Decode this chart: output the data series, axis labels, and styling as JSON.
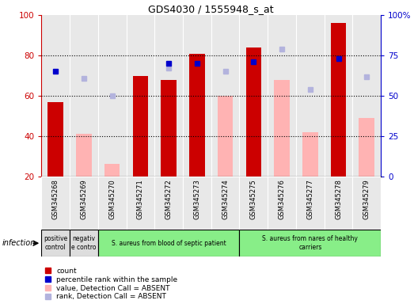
{
  "title": "GDS4030 / 1555948_s_at",
  "samples": [
    "GSM345268",
    "GSM345269",
    "GSM345270",
    "GSM345271",
    "GSM345272",
    "GSM345273",
    "GSM345274",
    "GSM345275",
    "GSM345276",
    "GSM345277",
    "GSM345278",
    "GSM345279"
  ],
  "count_values": [
    57,
    null,
    null,
    70,
    68,
    81,
    null,
    84,
    null,
    null,
    96,
    null
  ],
  "count_color": "#cc0000",
  "rank_values": [
    65,
    null,
    null,
    null,
    70,
    70,
    null,
    71,
    null,
    null,
    73,
    null
  ],
  "rank_color": "#0000cc",
  "absent_value": [
    null,
    41,
    26,
    null,
    null,
    null,
    60,
    null,
    68,
    42,
    null,
    49
  ],
  "absent_value_color": "#ffb3b3",
  "absent_rank": [
    null,
    61,
    50,
    null,
    67,
    null,
    65,
    null,
    79,
    54,
    null,
    62
  ],
  "absent_rank_color": "#b3b3dd",
  "ylim_left": [
    20,
    100
  ],
  "ylim_right": [
    0,
    100
  ],
  "yticks_left": [
    20,
    40,
    60,
    80,
    100
  ],
  "yticks_right": [
    0,
    25,
    50,
    75,
    100
  ],
  "ytick_right_labels": [
    "0",
    "25",
    "50",
    "75",
    "100%"
  ],
  "groups": [
    {
      "label": "positive\ncontrol",
      "color": "#dddddd",
      "start": 0,
      "end": 1
    },
    {
      "label": "negativ\ne contro",
      "color": "#dddddd",
      "start": 1,
      "end": 2
    },
    {
      "label": "S. aureus from blood of septic patient",
      "color": "#88ee88",
      "start": 2,
      "end": 7
    },
    {
      "label": "S. aureus from nares of healthy\ncarriers",
      "color": "#88ee88",
      "start": 7,
      "end": 12
    }
  ],
  "infection_label": "infection",
  "legend_items": [
    {
      "label": "count",
      "color": "#cc0000"
    },
    {
      "label": "percentile rank within the sample",
      "color": "#0000cc"
    },
    {
      "label": "value, Detection Call = ABSENT",
      "color": "#ffb3b3"
    },
    {
      "label": "rank, Detection Call = ABSENT",
      "color": "#b3b3dd"
    }
  ],
  "bar_width": 0.55,
  "col_bg_color": "#e8e8e8",
  "grid_color": "#000000",
  "spine_color": "#000000"
}
